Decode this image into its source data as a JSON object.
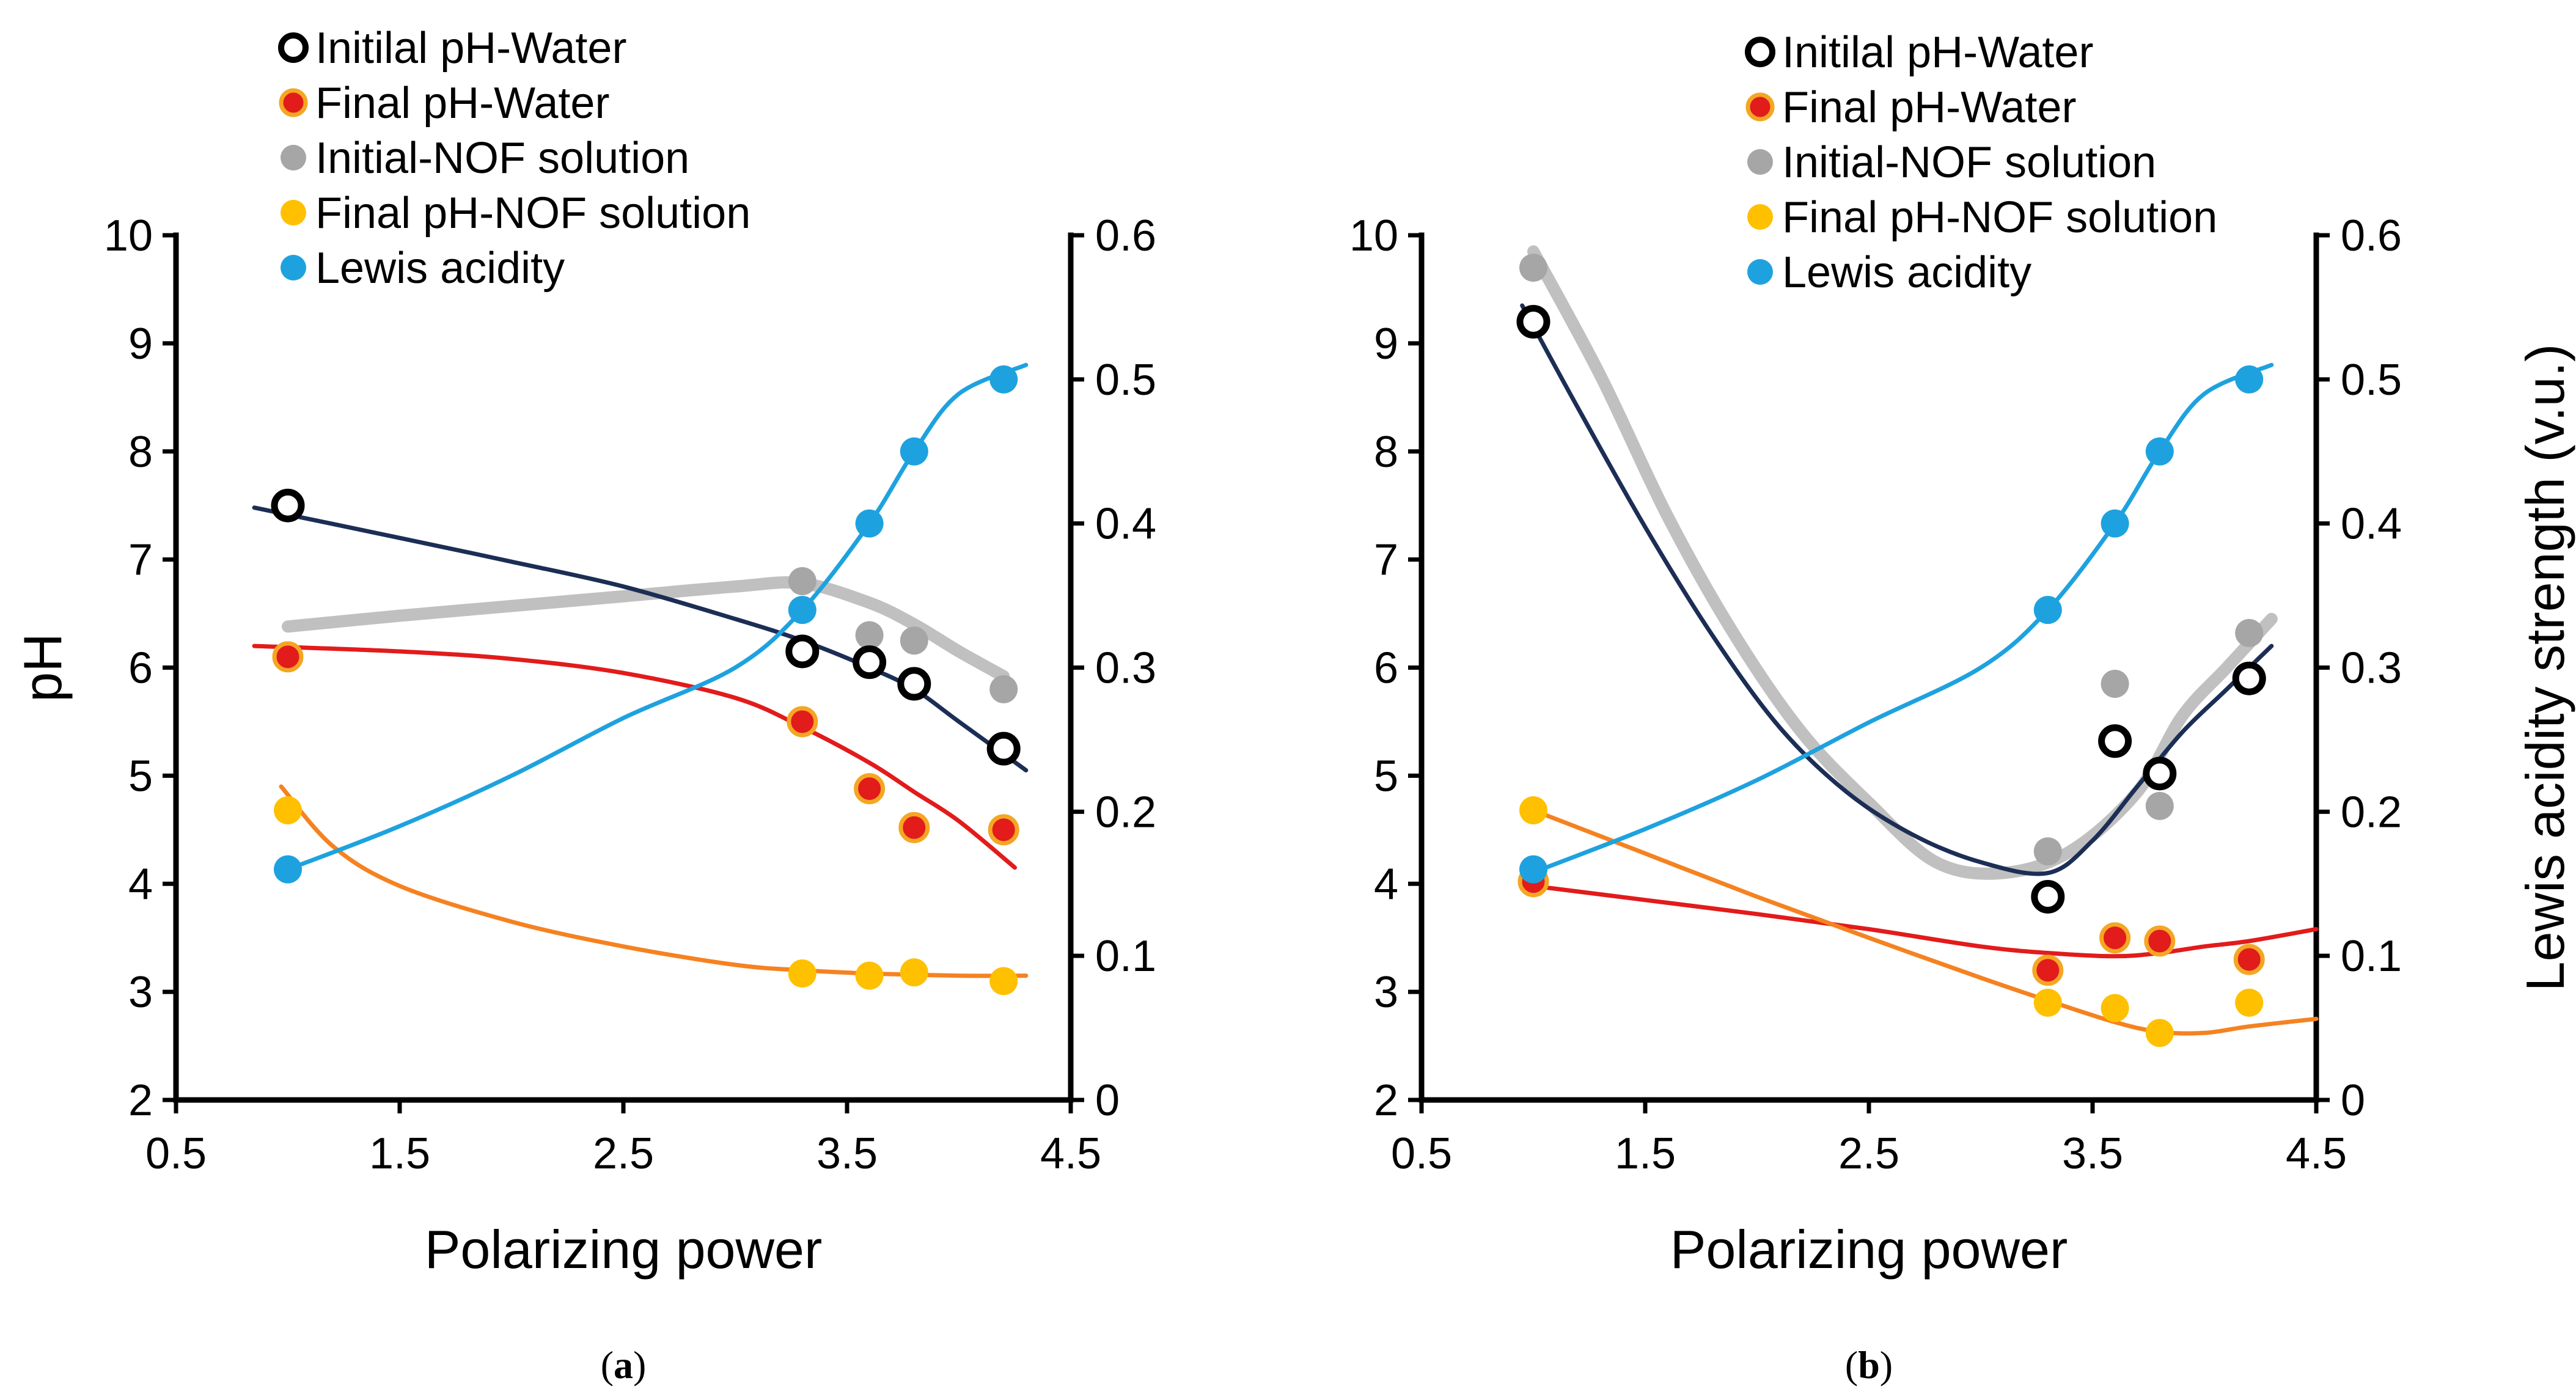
{
  "chart_data": [
    {
      "id": "a",
      "type": "scatter",
      "caption_letter": "a",
      "xlabel": "Polarizing power",
      "ylabel": "pH",
      "y2label": "",
      "xlim": [
        0.5,
        4.5
      ],
      "ylim": [
        2,
        10
      ],
      "y2lim": [
        0,
        0.6
      ],
      "x_ticks": [
        "0.5",
        "1.5",
        "2.5",
        "3.5",
        "4.5"
      ],
      "y_ticks": [
        "2",
        "3",
        "4",
        "5",
        "6",
        "7",
        "8",
        "9",
        "10"
      ],
      "y2_ticks": [
        "0",
        "0.1",
        "0.2",
        "0.3",
        "0.4",
        "0.5",
        "0.6"
      ],
      "legend": [
        "Initilal pH-Water",
        "Final pH-Water",
        "Initial-NOF solution",
        "Final pH-NOF solution",
        "Lewis acidity"
      ],
      "x": [
        1.0,
        3.3,
        3.6,
        3.8,
        4.2
      ],
      "series": [
        {
          "name": "Initilal pH-Water",
          "axis": "left",
          "marker": "open-circle",
          "color": "#000000",
          "values": [
            7.5,
            6.15,
            6.05,
            5.85,
            5.25
          ],
          "trend": [
            [
              0.85,
              7.48
            ],
            [
              1.5,
              7.2
            ],
            [
              2.0,
              6.98
            ],
            [
              2.5,
              6.75
            ],
            [
              3.0,
              6.45
            ],
            [
              3.3,
              6.25
            ],
            [
              3.6,
              6.0
            ],
            [
              3.8,
              5.8
            ],
            [
              4.0,
              5.5
            ],
            [
              4.3,
              5.05
            ]
          ],
          "trend_color": "#1c2e55"
        },
        {
          "name": "Final pH-Water",
          "axis": "left",
          "marker": "filled-circle",
          "color": "#e21b1b",
          "values": [
            6.1,
            5.5,
            4.88,
            4.52,
            4.5
          ],
          "trend": [
            [
              0.85,
              6.2
            ],
            [
              1.5,
              6.15
            ],
            [
              2.0,
              6.08
            ],
            [
              2.5,
              5.95
            ],
            [
              3.0,
              5.72
            ],
            [
              3.3,
              5.45
            ],
            [
              3.6,
              5.12
            ],
            [
              3.8,
              4.85
            ],
            [
              4.0,
              4.58
            ],
            [
              4.25,
              4.15
            ]
          ],
          "trend_color": "#e21b1b"
        },
        {
          "name": "Initial-NOF solution",
          "axis": "left",
          "marker": "filled-circle",
          "color": "#a6a6a6",
          "values": [
            6.1,
            6.8,
            6.3,
            6.25,
            5.8
          ],
          "trend": [
            [
              1.0,
              6.38
            ],
            [
              1.5,
              6.48
            ],
            [
              2.0,
              6.57
            ],
            [
              2.5,
              6.66
            ],
            [
              3.0,
              6.75
            ],
            [
              3.3,
              6.78
            ],
            [
              3.6,
              6.6
            ],
            [
              3.8,
              6.4
            ],
            [
              4.0,
              6.15
            ],
            [
              4.2,
              5.92
            ]
          ],
          "trend_color": "#c0c0c0"
        },
        {
          "name": "Final pH-NOF solution",
          "axis": "left",
          "marker": "filled-circle",
          "color": "#ffc000",
          "values": [
            4.68,
            3.17,
            3.15,
            3.18,
            3.1
          ],
          "trend": [
            [
              0.97,
              4.9
            ],
            [
              1.2,
              4.35
            ],
            [
              1.5,
              3.98
            ],
            [
              2.0,
              3.65
            ],
            [
              2.5,
              3.42
            ],
            [
              3.0,
              3.25
            ],
            [
              3.3,
              3.2
            ],
            [
              3.6,
              3.17
            ],
            [
              4.0,
              3.15
            ],
            [
              4.3,
              3.15
            ]
          ],
          "trend_color": "#f58220"
        },
        {
          "name": "Lewis acidity",
          "axis": "right",
          "marker": "filled-circle",
          "color": "#1ea2df",
          "values": [
            0.16,
            0.34,
            0.4,
            0.45,
            0.5
          ],
          "trend": [
            [
              1.0,
              0.16
            ],
            [
              1.5,
              0.19
            ],
            [
              2.0,
              0.225
            ],
            [
              2.5,
              0.265
            ],
            [
              3.0,
              0.3
            ],
            [
              3.3,
              0.34
            ],
            [
              3.6,
              0.4
            ],
            [
              3.8,
              0.45
            ],
            [
              4.0,
              0.49
            ],
            [
              4.3,
              0.51
            ]
          ],
          "trend_color": "#1ea2df"
        }
      ]
    },
    {
      "id": "b",
      "type": "scatter",
      "caption_letter": "b",
      "xlabel": "Polarizing power",
      "ylabel": "",
      "y2label": "Lewis acidity strength (v.u.)",
      "xlim": [
        0.5,
        4.5
      ],
      "ylim": [
        2,
        10
      ],
      "y2lim": [
        0,
        0.6
      ],
      "x_ticks": [
        "0.5",
        "1.5",
        "2.5",
        "3.5",
        "4.5"
      ],
      "y_ticks": [
        "2",
        "3",
        "4",
        "5",
        "6",
        "7",
        "8",
        "9",
        "10"
      ],
      "y2_ticks": [
        "0",
        "0.1",
        "0.2",
        "0.3",
        "0.4",
        "0.5",
        "0.6"
      ],
      "legend": [
        "Initilal pH-Water",
        "Final pH-Water",
        "Initial-NOF solution",
        "Final pH-NOF solution",
        "Lewis acidity"
      ],
      "x": [
        1.0,
        3.3,
        3.6,
        3.8,
        4.2
      ],
      "series": [
        {
          "name": "Initilal pH-Water",
          "axis": "left",
          "marker": "open-circle",
          "color": "#000000",
          "values": [
            9.2,
            3.88,
            5.32,
            5.02,
            5.9
          ],
          "trend": [
            [
              0.95,
              9.35
            ],
            [
              1.2,
              8.4
            ],
            [
              1.5,
              7.3
            ],
            [
              1.8,
              6.3
            ],
            [
              2.1,
              5.45
            ],
            [
              2.4,
              4.85
            ],
            [
              2.7,
              4.45
            ],
            [
              3.0,
              4.2
            ],
            [
              3.3,
              4.1
            ],
            [
              3.5,
              4.4
            ],
            [
              3.7,
              4.9
            ],
            [
              3.9,
              5.4
            ],
            [
              4.1,
              5.8
            ],
            [
              4.3,
              6.2
            ]
          ],
          "trend_color": "#1c2e55"
        },
        {
          "name": "Final pH-Water",
          "axis": "left",
          "marker": "filled-circle",
          "color": "#e21b1b",
          "values": [
            4.02,
            3.2,
            3.5,
            3.47,
            3.3
          ],
          "trend": [
            [
              1.0,
              3.98
            ],
            [
              1.5,
              3.85
            ],
            [
              2.0,
              3.72
            ],
            [
              2.5,
              3.58
            ],
            [
              3.0,
              3.42
            ],
            [
              3.3,
              3.36
            ],
            [
              3.6,
              3.33
            ],
            [
              3.8,
              3.36
            ],
            [
              4.0,
              3.42
            ],
            [
              4.2,
              3.47
            ],
            [
              4.5,
              3.58
            ]
          ],
          "trend_color": "#e21b1b"
        },
        {
          "name": "Initial-NOF solution",
          "axis": "left",
          "marker": "filled-circle",
          "color": "#a6a6a6",
          "values": [
            9.7,
            4.3,
            5.85,
            4.72,
            6.32
          ],
          "trend": [
            [
              1.0,
              9.85
            ],
            [
              1.3,
              8.7
            ],
            [
              1.6,
              7.4
            ],
            [
              1.9,
              6.3
            ],
            [
              2.2,
              5.4
            ],
            [
              2.5,
              4.75
            ],
            [
              2.8,
              4.2
            ],
            [
              3.1,
              4.1
            ],
            [
              3.4,
              4.3
            ],
            [
              3.7,
              4.85
            ],
            [
              3.9,
              5.55
            ],
            [
              4.1,
              6.0
            ],
            [
              4.3,
              6.45
            ]
          ],
          "trend_color": "#c0c0c0"
        },
        {
          "name": "Final pH-NOF solution",
          "axis": "left",
          "marker": "filled-circle",
          "color": "#ffc000",
          "values": [
            4.68,
            2.9,
            2.85,
            2.62,
            2.9
          ],
          "trend": [
            [
              1.0,
              4.68
            ],
            [
              1.5,
              4.28
            ],
            [
              2.0,
              3.88
            ],
            [
              2.5,
              3.5
            ],
            [
              3.0,
              3.13
            ],
            [
              3.3,
              2.92
            ],
            [
              3.6,
              2.72
            ],
            [
              3.8,
              2.63
            ],
            [
              4.0,
              2.62
            ],
            [
              4.2,
              2.68
            ],
            [
              4.5,
              2.75
            ]
          ],
          "trend_color": "#f58220"
        },
        {
          "name": "Lewis acidity",
          "axis": "right",
          "marker": "filled-circle",
          "color": "#1ea2df",
          "values": [
            0.16,
            0.34,
            0.4,
            0.45,
            0.5
          ],
          "trend": [
            [
              0.95,
              0.155
            ],
            [
              1.5,
              0.188
            ],
            [
              2.0,
              0.222
            ],
            [
              2.5,
              0.262
            ],
            [
              3.0,
              0.3
            ],
            [
              3.3,
              0.34
            ],
            [
              3.6,
              0.4
            ],
            [
              3.8,
              0.45
            ],
            [
              4.0,
              0.49
            ],
            [
              4.3,
              0.51
            ]
          ],
          "trend_color": "#1ea2df"
        }
      ]
    }
  ]
}
